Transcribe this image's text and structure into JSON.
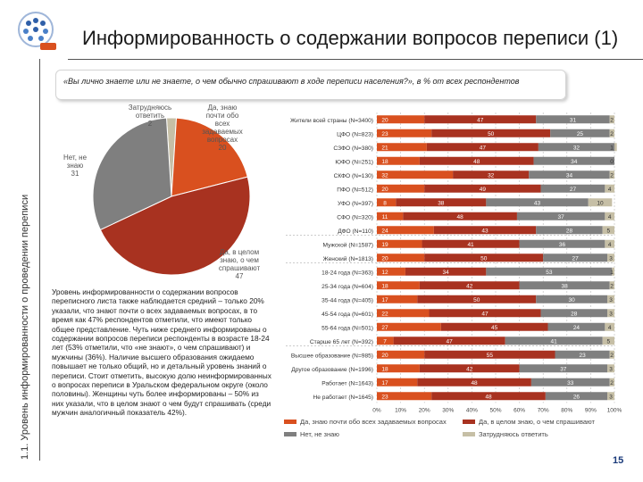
{
  "slide": {
    "title": "Информированность о содержании вопросов переписи (1)",
    "side_label": "1.1. Уровень информированности о проведении переписи",
    "page_number": "15",
    "question": "«Вы лично знаете или не знаете, о чем обычно спрашивают в ходе переписи населения?», в % от всех респондентов",
    "summary": "Уровень информированности о содержании вопросов переписного листа также наблюдается средний – только 20% указали, что знают почти о всех задаваемых вопросах, в то время как 47% респондентов отметили, что имеют только общее представление. Чуть ниже среднего информированы о содержании вопросов переписи респонденты в возрасте 18-24 лет (53% отметили, что «не знают», о чем спрашивают) и мужчины (36%). Наличие высшего образования ожидаемо повышает не только общий, но и детальный уровень знаний о переписи. Стоит отметить, высокую долю неинформированных о вопросах переписи в Уральском федеральном округе (около половины). Женщины чуть более информированы – 50% из них указали, что в целом знают о чем будут спрашивать (среди мужчин аналогичный показатель 42%)."
  },
  "colors": {
    "yes_almost_all": "#d9501f",
    "yes_general": "#a83220",
    "no": "#7f7f7f",
    "hard_to_say": "#c6bfa6",
    "grid": "#bbbbbb"
  },
  "chart_data": [
    {
      "type": "pie",
      "slices": [
        {
          "label": "Да, знаю почти обо всех задаваемых вопросах",
          "value": 20,
          "color": "#d9501f"
        },
        {
          "label": "Да, в целом знаю, о чем спрашивают",
          "value": 47,
          "color": "#a83220"
        },
        {
          "label": "Нет, не знаю",
          "value": 31,
          "color": "#7f7f7f"
        },
        {
          "label": "Затрудняюсь ответить",
          "value": 2,
          "color": "#c6bfa6"
        }
      ],
      "labels": [
        {
          "text": "Да, знаю почти обо всех задаваемых вопросах",
          "pct": "20"
        },
        {
          "text": "Да, в целом знаю, о чем спрашивают",
          "pct": "47"
        },
        {
          "text": "Нет, не знаю",
          "pct": "31"
        },
        {
          "text": "Затрудняюсь ответить",
          "pct": "2"
        }
      ]
    },
    {
      "type": "bar",
      "stacked": true,
      "orientation": "horizontal",
      "xlim": [
        0,
        100
      ],
      "xticks": [
        "0%",
        "10%",
        "20%",
        "30%",
        "40%",
        "50%",
        "60%",
        "70%",
        "80%",
        "90%",
        "100%"
      ],
      "series_names": [
        "Да, знаю почти обо всех задаваемых вопросах",
        "Да, в целом знаю, о чем спрашивают",
        "Нет, не знаю",
        "Затрудняюсь ответить"
      ],
      "categories": [
        "Жители всей страны (N=3400)",
        "ЦФО (N=823)",
        "СЗФО (N=380)",
        "ЮФО (N=251)",
        "СКФО (N=130)",
        "ПФО (N=512)",
        "УФО (N=397)",
        "СФО (N=320)",
        "ДФО (N=110)",
        "Мужской (N=1587)",
        "Женский (N=1813)",
        "18-24 года (N=363)",
        "25-34 года (N=604)",
        "35-44 года (N=405)",
        "45-54 года (N=601)",
        "55-64 года (N=501)",
        "Старше 65 лет (N=392)",
        "Высшее образование (N=985)",
        "Другое образование (N=1996)",
        "Работает (N=1643)",
        "Не работает (N=1645)"
      ],
      "rows": [
        [
          20,
          47,
          31,
          2
        ],
        [
          23,
          50,
          25,
          2
        ],
        [
          21,
          47,
          32,
          1
        ],
        [
          18,
          48,
          34,
          0
        ],
        [
          32,
          32,
          34,
          2
        ],
        [
          20,
          49,
          27,
          4
        ],
        [
          8,
          38,
          43,
          10
        ],
        [
          11,
          48,
          37,
          4
        ],
        [
          24,
          43,
          28,
          5
        ],
        [
          19,
          41,
          36,
          4
        ],
        [
          20,
          50,
          27,
          3
        ],
        [
          12,
          34,
          53,
          1
        ],
        [
          18,
          42,
          38,
          2
        ],
        [
          17,
          50,
          30,
          3
        ],
        [
          22,
          47,
          28,
          3
        ],
        [
          27,
          45,
          24,
          4
        ],
        [
          7,
          47,
          41,
          5
        ],
        [
          20,
          55,
          23,
          2
        ],
        [
          18,
          42,
          37,
          3
        ],
        [
          17,
          48,
          33,
          2
        ],
        [
          23,
          48,
          26,
          3
        ]
      ]
    }
  ]
}
